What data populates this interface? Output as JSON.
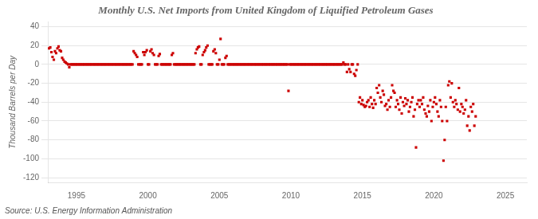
{
  "chart_data": {
    "type": "scatter",
    "title": "Monthly U.S. Net Imports from United Kingdom of Liquified Petroleum Gases",
    "ylabel": "Thousand Barrels per Day",
    "annotations": [
      "Source: U.S. Energy Information Administration"
    ],
    "xlim": [
      1993.0,
      2026.5
    ],
    "ylim": [
      -125,
      45
    ],
    "xticks": [
      1995,
      2000,
      2005,
      2010,
      2015,
      2020,
      2025
    ],
    "yticks": [
      -120,
      -100,
      -80,
      -60,
      -40,
      -20,
      0,
      20,
      40
    ],
    "grid": "y",
    "color": "#cc0000",
    "marker": "square",
    "x": [
      1993.08,
      1993.17,
      1993.25,
      1993.33,
      1993.42,
      1993.5,
      1993.58,
      1993.67,
      1993.75,
      1993.83,
      1993.92,
      1994.0,
      1994.08,
      1994.17,
      1994.25,
      1994.33,
      1994.42,
      1994.5,
      1994.58,
      1994.67,
      1994.75,
      1994.83,
      1994.92,
      1995.0,
      1995.08,
      1995.17,
      1995.25,
      1995.33,
      1995.42,
      1995.5,
      1995.58,
      1995.67,
      1995.75,
      1995.83,
      1995.92,
      1996.0,
      1996.08,
      1996.17,
      1996.25,
      1996.33,
      1996.42,
      1996.5,
      1996.58,
      1996.67,
      1996.75,
      1996.83,
      1996.92,
      1997.0,
      1997.08,
      1997.17,
      1997.25,
      1997.33,
      1997.42,
      1997.5,
      1997.58,
      1997.67,
      1997.75,
      1997.83,
      1997.92,
      1998.0,
      1998.08,
      1998.17,
      1998.25,
      1998.33,
      1998.42,
      1998.5,
      1998.58,
      1998.67,
      1998.75,
      1998.83,
      1998.92,
      1999.0,
      1999.08,
      1999.17,
      1999.25,
      1999.33,
      1999.42,
      1999.5,
      1999.58,
      1999.67,
      1999.75,
      1999.83,
      1999.92,
      2000.0,
      2000.08,
      2000.17,
      2000.25,
      2000.33,
      2000.42,
      2000.5,
      2000.58,
      2000.67,
      2000.75,
      2000.83,
      2000.92,
      2001.0,
      2001.08,
      2001.17,
      2001.25,
      2001.33,
      2001.42,
      2001.5,
      2001.58,
      2001.67,
      2001.75,
      2001.83,
      2001.92,
      2002.0,
      2002.08,
      2002.17,
      2002.25,
      2002.33,
      2002.42,
      2002.5,
      2002.58,
      2002.67,
      2002.75,
      2002.83,
      2002.92,
      2003.0,
      2003.08,
      2003.17,
      2003.25,
      2003.33,
      2003.42,
      2003.5,
      2003.58,
      2003.67,
      2003.75,
      2003.83,
      2003.92,
      2004.0,
      2004.08,
      2004.17,
      2004.25,
      2004.33,
      2004.42,
      2004.5,
      2004.58,
      2004.67,
      2004.75,
      2004.83,
      2004.92,
      2005.0,
      2005.08,
      2005.17,
      2005.25,
      2005.33,
      2005.42,
      2005.5,
      2005.58,
      2005.67,
      2005.75,
      2005.83,
      2005.92,
      2006.0,
      2006.08,
      2006.17,
      2006.25,
      2006.33,
      2006.42,
      2006.5,
      2006.58,
      2006.67,
      2006.75,
      2006.83,
      2006.92,
      2007.0,
      2007.08,
      2007.17,
      2007.25,
      2007.33,
      2007.42,
      2007.5,
      2007.58,
      2007.67,
      2007.75,
      2007.83,
      2007.92,
      2008.0,
      2008.08,
      2008.17,
      2008.25,
      2008.33,
      2008.42,
      2008.5,
      2008.58,
      2008.67,
      2008.75,
      2008.83,
      2008.92,
      2009.0,
      2009.08,
      2009.17,
      2009.25,
      2009.33,
      2009.42,
      2009.5,
      2009.58,
      2009.67,
      2009.75,
      2009.83,
      2009.92,
      2010.0,
      2010.08,
      2010.17,
      2010.25,
      2010.33,
      2010.42,
      2010.5,
      2010.58,
      2010.67,
      2010.75,
      2010.83,
      2010.92,
      2011.0,
      2011.08,
      2011.17,
      2011.25,
      2011.33,
      2011.42,
      2011.5,
      2011.58,
      2011.67,
      2011.75,
      2011.83,
      2011.92,
      2012.0,
      2012.08,
      2012.17,
      2012.25,
      2012.33,
      2012.42,
      2012.5,
      2012.58,
      2012.67,
      2012.75,
      2012.83,
      2012.92,
      2013.0,
      2013.08,
      2013.17,
      2013.25,
      2013.33,
      2013.42,
      2013.5,
      2013.58,
      2013.67,
      2013.75,
      2013.83,
      2013.92,
      2014.0,
      2014.08,
      2014.17,
      2014.25,
      2014.33,
      2014.42,
      2014.5,
      2014.58,
      2014.67,
      2014.75,
      2014.83,
      2014.92,
      2015.0,
      2015.08,
      2015.17,
      2015.25,
      2015.33,
      2015.42,
      2015.5,
      2015.58,
      2015.67,
      2015.75,
      2015.83,
      2015.92,
      2016.0,
      2016.08,
      2016.17,
      2016.25,
      2016.33,
      2016.42,
      2016.5,
      2016.58,
      2016.67,
      2016.75,
      2016.83,
      2016.92,
      2017.0,
      2017.08,
      2017.17,
      2017.25,
      2017.33,
      2017.42,
      2017.5,
      2017.58,
      2017.67,
      2017.75,
      2017.83,
      2017.92,
      2018.0,
      2018.08,
      2018.17,
      2018.25,
      2018.33,
      2018.42,
      2018.5,
      2018.58,
      2018.67,
      2018.75,
      2018.83,
      2018.92,
      2019.0,
      2019.08,
      2019.17,
      2019.25,
      2019.33,
      2019.42,
      2019.5,
      2019.58,
      2019.67,
      2019.75,
      2019.83,
      2019.92,
      2020.0,
      2020.08,
      2020.17,
      2020.25,
      2020.33,
      2020.42,
      2020.5,
      2020.58,
      2020.67,
      2020.75,
      2020.83,
      2020.92,
      2021.0,
      2021.08,
      2021.17,
      2021.25,
      2021.33,
      2021.42,
      2021.5,
      2021.58,
      2021.67,
      2021.75,
      2021.83,
      2021.92,
      2022.0,
      2022.08,
      2022.17,
      2022.25,
      2022.33,
      2022.42,
      2022.5,
      2022.58,
      2022.67,
      2022.75,
      2022.83,
      2022.92
    ],
    "values": [
      17,
      18,
      13,
      8,
      5,
      14,
      12,
      17,
      19,
      15,
      14,
      7,
      5,
      3,
      2,
      1,
      0,
      -3,
      0,
      0,
      0,
      0,
      0,
      0,
      0,
      0,
      0,
      0,
      0,
      0,
      0,
      0,
      0,
      0,
      0,
      0,
      0,
      0,
      0,
      0,
      0,
      0,
      0,
      0,
      0,
      0,
      0,
      0,
      0,
      0,
      0,
      0,
      0,
      0,
      0,
      0,
      0,
      0,
      0,
      0,
      0,
      0,
      0,
      0,
      0,
      0,
      0,
      0,
      0,
      0,
      0,
      14,
      12,
      10,
      8,
      0,
      0,
      0,
      0,
      13,
      10,
      13,
      15,
      0,
      0,
      14,
      16,
      12,
      10,
      0,
      0,
      0,
      9,
      11,
      0,
      0,
      0,
      0,
      0,
      0,
      0,
      0,
      0,
      10,
      12,
      0,
      0,
      0,
      0,
      0,
      0,
      0,
      0,
      0,
      0,
      0,
      0,
      0,
      0,
      0,
      0,
      0,
      0,
      12,
      16,
      18,
      19,
      0,
      0,
      10,
      13,
      15,
      18,
      20,
      0,
      0,
      0,
      0,
      14,
      16,
      12,
      0,
      0,
      5,
      27,
      0,
      0,
      0,
      7,
      9,
      0,
      0,
      0,
      0,
      0,
      0,
      0,
      0,
      0,
      0,
      0,
      0,
      0,
      0,
      0,
      0,
      0,
      0,
      0,
      0,
      0,
      0,
      0,
      0,
      0,
      0,
      0,
      0,
      0,
      0,
      0,
      0,
      0,
      0,
      0,
      0,
      0,
      0,
      0,
      0,
      0,
      0,
      0,
      0,
      0,
      0,
      0,
      0,
      0,
      0,
      0,
      -28,
      0,
      0,
      0,
      0,
      0,
      0,
      0,
      0,
      0,
      0,
      0,
      0,
      0,
      0,
      0,
      0,
      0,
      0,
      0,
      0,
      0,
      0,
      0,
      0,
      0,
      0,
      0,
      0,
      0,
      0,
      0,
      0,
      0,
      0,
      0,
      0,
      0,
      0,
      0,
      0,
      0,
      0,
      0,
      0,
      0,
      2,
      0,
      0,
      -8,
      0,
      -5,
      -8,
      0,
      0,
      -10,
      -12,
      -6,
      0,
      -40,
      -35,
      -42,
      -38,
      -43,
      -45,
      -44,
      -40,
      -38,
      -45,
      -35,
      -42,
      -46,
      -38,
      -42,
      -25,
      -30,
      -22,
      -35,
      -40,
      -28,
      -32,
      -44,
      -42,
      -48,
      -38,
      -45,
      -35,
      -22,
      -28,
      -30,
      -45,
      -38,
      -42,
      -48,
      -35,
      -52,
      -40,
      -44,
      -36,
      -42,
      -38,
      -50,
      -45,
      -40,
      -35,
      -55,
      -48,
      -88,
      -42,
      -38,
      -45,
      -38,
      -42,
      -35,
      -48,
      -52,
      -55,
      -44,
      -50,
      -38,
      -60,
      -45,
      -40,
      -35,
      -42,
      -50,
      -55,
      -38,
      -45,
      -60,
      -102,
      -80,
      -45,
      -60,
      -22,
      -18,
      -35,
      -20,
      -40,
      -45,
      -38,
      -42,
      -48,
      -25,
      -50,
      -42,
      -45,
      -52,
      -48,
      -38,
      -65,
      -55,
      -70,
      -45,
      -50,
      -42,
      -65,
      -55
    ]
  }
}
